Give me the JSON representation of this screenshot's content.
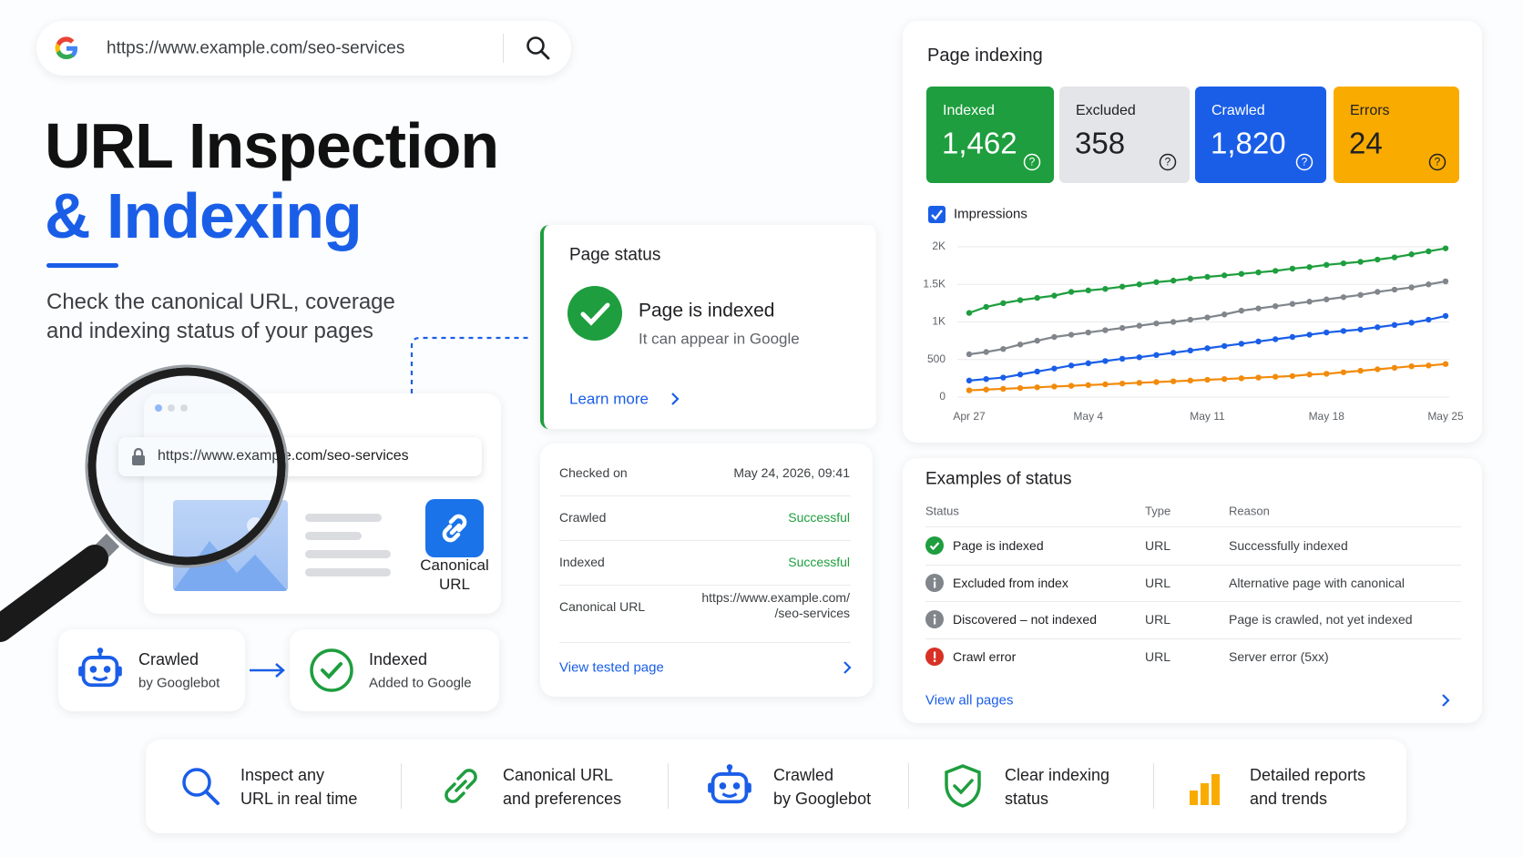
{
  "search_bar": {
    "url": "https://www.example.com/seo-services"
  },
  "hero": {
    "title_line1": "URL Inspection",
    "title_line2": "& Indexing",
    "subtitle_line1": "Check the canonical URL, coverage",
    "subtitle_line2": "and indexing status of your pages"
  },
  "illustration": {
    "url": "https://www.example.com/seo-services",
    "canonical_line1": "Canonical",
    "canonical_line2": "URL"
  },
  "flow": [
    {
      "title": "Crawled",
      "subtitle": "by Googlebot"
    },
    {
      "title": "Indexed",
      "subtitle": "Added to Google"
    }
  ],
  "page_status": {
    "title": "Page status",
    "status": "Page is indexed",
    "description": "It can appear in Google",
    "link": "Learn more"
  },
  "details": {
    "rows": [
      {
        "label": "Checked on",
        "value": [
          "May 24, 2026, 09:41"
        ]
      },
      {
        "label": "Crawled",
        "value": [
          "Successful"
        ]
      },
      {
        "label": "Indexed",
        "value": [
          "Successful"
        ]
      },
      {
        "label": "Canonical URL",
        "value": [
          "https://www.example.com/",
          "/seo-services"
        ]
      }
    ],
    "link": "View tested page"
  },
  "page_indexing": {
    "title": "Page indexing",
    "cards": [
      {
        "label": "Indexed",
        "value": "1,462",
        "color": "#1e9e3e",
        "text_color": "#ffffff"
      },
      {
        "label": "Excluded",
        "value": "358",
        "color": "#e3e5e8",
        "text_color": "#202124"
      },
      {
        "label": "Crawled",
        "value": "1,820",
        "color": "#1a5ee8",
        "text_color": "#ffffff"
      },
      {
        "label": "Errors",
        "value": "24",
        "color": "#f9ab00",
        "text_color": "#202124"
      }
    ],
    "legend": "Impressions",
    "chart_data": {
      "type": "line",
      "categories": [
        "Apr 27",
        null,
        null,
        null,
        null,
        null,
        null,
        "May 4",
        null,
        null,
        null,
        null,
        null,
        null,
        "May 11",
        null,
        null,
        null,
        null,
        null,
        null,
        "May 18",
        null,
        null,
        null,
        null,
        null,
        null,
        "May 25"
      ],
      "series": [
        {
          "color": "#1e9e3e",
          "values": [
            1120,
            1200,
            1250,
            1290,
            1320,
            1350,
            1400,
            1420,
            1440,
            1470,
            1500,
            1530,
            1550,
            1580,
            1600,
            1620,
            1640,
            1660,
            1680,
            1710,
            1730,
            1760,
            1780,
            1800,
            1830,
            1860,
            1900,
            1940,
            1980
          ]
        },
        {
          "color": "#80868b",
          "values": [
            570,
            600,
            640,
            700,
            750,
            800,
            830,
            860,
            890,
            920,
            950,
            980,
            1000,
            1030,
            1060,
            1100,
            1150,
            1180,
            1210,
            1240,
            1270,
            1300,
            1330,
            1360,
            1400,
            1430,
            1460,
            1500,
            1540
          ]
        },
        {
          "color": "#1a5ee8",
          "values": [
            220,
            240,
            260,
            300,
            340,
            380,
            420,
            450,
            480,
            510,
            530,
            560,
            590,
            620,
            650,
            680,
            710,
            740,
            770,
            800,
            830,
            860,
            880,
            900,
            930,
            960,
            990,
            1030,
            1080
          ]
        },
        {
          "color": "#f28b0c",
          "values": [
            90,
            100,
            110,
            120,
            130,
            140,
            150,
            160,
            170,
            180,
            190,
            200,
            210,
            220,
            230,
            240,
            250,
            260,
            270,
            280,
            300,
            310,
            330,
            350,
            370,
            390,
            410,
            420,
            440
          ]
        }
      ],
      "ylim": [
        0,
        2000
      ],
      "yticks": [
        0,
        500,
        {
          "value": 1000,
          "label": "1K"
        },
        {
          "value": 1500,
          "label": "1.5K"
        },
        {
          "value": 2000,
          "label": "2K"
        }
      ],
      "grid": true
    }
  },
  "examples": {
    "title": "Examples of status",
    "headers": [
      "Status",
      "Type",
      "Reason"
    ],
    "rows": [
      [
        "Page is indexed",
        "URL",
        "Successfully indexed"
      ],
      [
        "Excluded from index",
        "URL",
        "Alternative page with canonical"
      ],
      [
        "Discovered – not indexed",
        "URL",
        "Page is crawled, not yet indexed"
      ],
      [
        "Crawl error",
        "URL",
        "Server error (5xx)"
      ]
    ],
    "link": "View all pages"
  },
  "features": [
    {
      "line1": "Inspect any",
      "line2": "URL in real time"
    },
    {
      "line1": "Canonical URL",
      "line2": "and preferences"
    },
    {
      "line1": "Crawled",
      "line2": "by Googlebot"
    },
    {
      "line1": "Clear indexing",
      "line2": "status"
    },
    {
      "line1": "Detailed reports",
      "line2": "and trends"
    }
  ]
}
